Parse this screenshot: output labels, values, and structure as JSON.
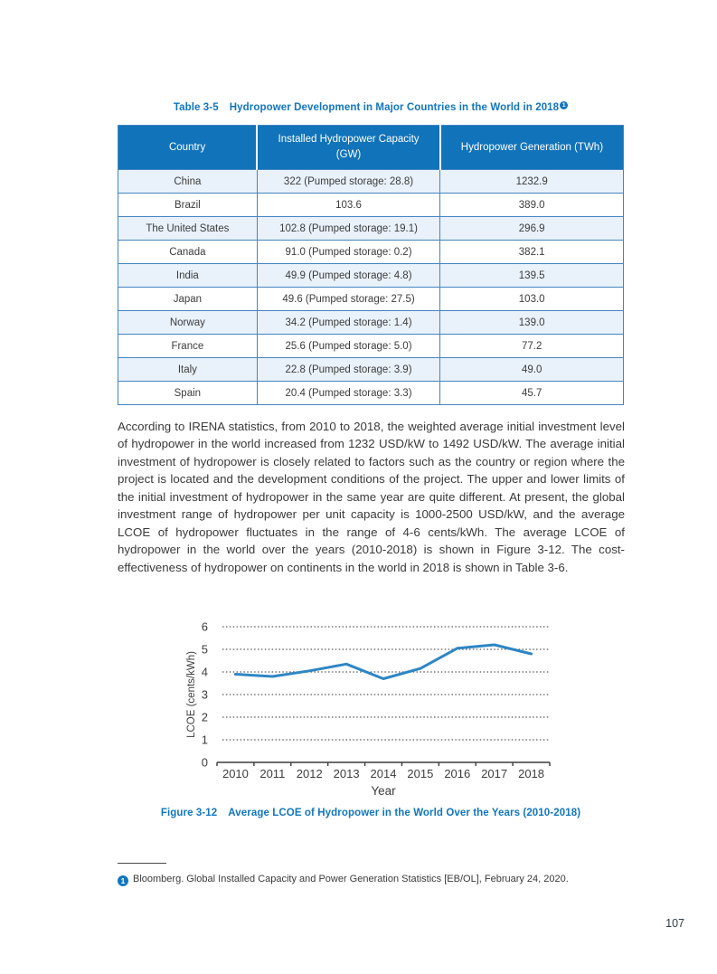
{
  "colors": {
    "accent_blue": "#1176C0",
    "table_header_bg": "#1173BA",
    "table_row_alt_bg": "#E9F1FA",
    "table_border": "#4585C1",
    "chart_line": "#2E86C4",
    "body_text": "#3a3a3a"
  },
  "table": {
    "title_prefix": "Table 3-5",
    "title_text": "Hydropower Development in Major Countries in the World in 2018",
    "footnote_ref": "1",
    "headers": [
      "Country",
      "Installed Hydropower Capacity (GW)",
      "Hydropower Generation (TWh)"
    ],
    "rows": [
      [
        "China",
        "322 (Pumped storage: 28.8)",
        "1232.9"
      ],
      [
        "Brazil",
        "103.6",
        "389.0"
      ],
      [
        "The United States",
        "102.8 (Pumped storage: 19.1)",
        "296.9"
      ],
      [
        "Canada",
        "91.0 (Pumped storage: 0.2)",
        "382.1"
      ],
      [
        "India",
        "49.9 (Pumped storage: 4.8)",
        "139.5"
      ],
      [
        "Japan",
        "49.6 (Pumped storage: 27.5)",
        "103.0"
      ],
      [
        "Norway",
        "34.2 (Pumped storage: 1.4)",
        "139.0"
      ],
      [
        "France",
        "25.6 (Pumped storage: 5.0)",
        "77.2"
      ],
      [
        "Italy",
        "22.8 (Pumped storage: 3.9)",
        "49.0"
      ],
      [
        "Spain",
        "20.4 (Pumped storage: 3.3)",
        "45.7"
      ]
    ]
  },
  "paragraph": {
    "text": "According to IRENA statistics, from 2010 to 2018, the weighted average initial investment level of hydropower in the world increased from 1232 USD/kW to 1492 USD/kW. The average initial investment of hydropower is closely related to factors such as the country or region where the project is located and the development conditions of the project. The upper and lower limits of the initial investment of hydropower in the same year are quite different. At present, the global investment range of hydropower per unit capacity is 1000-2500 USD/kW, and the average LCOE of hydropower fluctuates in the range of 4-6 cents/kWh. The average LCOE of hydropower in the world over the years (2010-2018) is shown in Figure 3-12. The cost-effectiveness of hydropower on continents in the world in 2018 is shown in Table 3-6."
  },
  "chart_data": {
    "type": "line",
    "x": [
      2010,
      2011,
      2012,
      2013,
      2014,
      2015,
      2016,
      2017,
      2018
    ],
    "values": [
      3.9,
      3.8,
      4.05,
      4.35,
      3.7,
      4.15,
      5.05,
      5.2,
      4.8
    ],
    "xlabel": "Year",
    "ylabel": "LCOE (cents/kWh)",
    "ylim": [
      0,
      6
    ],
    "yticks": [
      0,
      1,
      2,
      3,
      4,
      5,
      6
    ],
    "grid": "horizontal-dotted",
    "legend_position": "none",
    "line_color": "#2E86C4",
    "title": "Average LCOE of Hydropower in the World Over the Years (2010-2018)"
  },
  "figure": {
    "caption_prefix": "Figure 3-12",
    "caption_text": "Average LCOE of Hydropower in the World Over the Years (2010-2018)"
  },
  "footnote": {
    "marker_digit": "1",
    "text": "Bloomberg. Global Installed Capacity and Power Generation Statistics [EB/OL], February 24, 2020."
  },
  "page": {
    "number": "107"
  }
}
